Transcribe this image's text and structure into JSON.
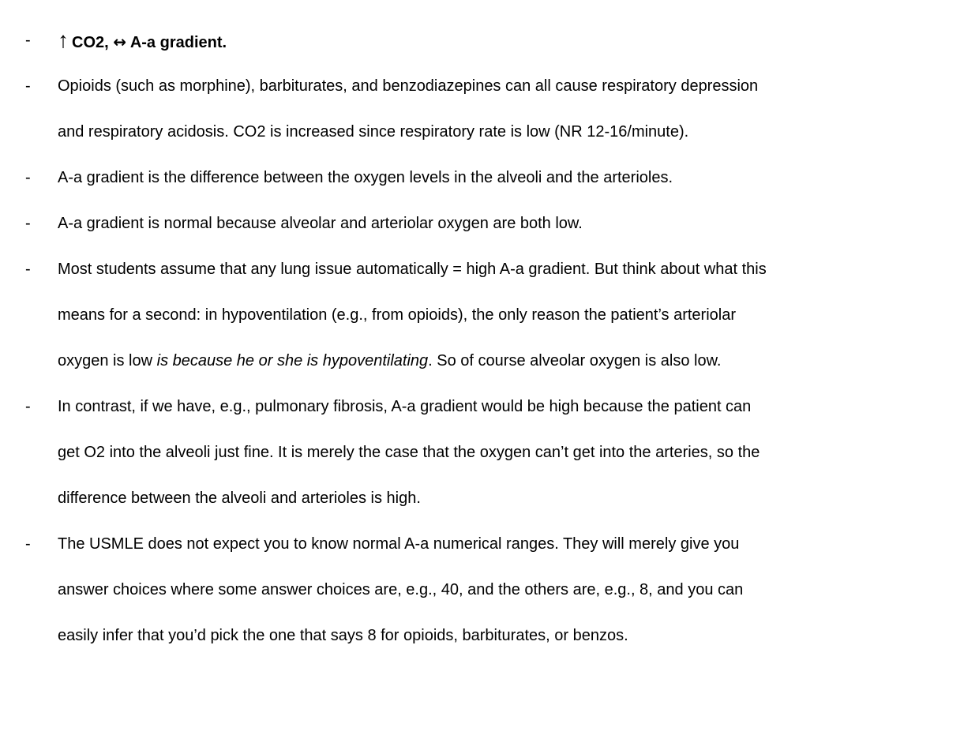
{
  "bullets": [
    {
      "heading": {
        "arrow_up": "↑",
        "part1": "CO2, ",
        "arrow_lr": "↔",
        "part2": " A-a gradient."
      }
    },
    {
      "lines": [
        "Opioids (such as morphine), barbiturates, and benzodiazepines can all cause respiratory depression",
        "and respiratory acidosis. CO2 is increased since respiratory rate is low (NR 12-16/minute)."
      ]
    },
    {
      "lines": [
        "A-a gradient is the difference between the oxygen levels in the alveoli and the arterioles."
      ]
    },
    {
      "lines": [
        "A-a gradient is normal because alveolar and arteriolar oxygen are both low."
      ]
    },
    {
      "lines": [
        "Most students assume that any lung issue automatically = high A-a gradient. But think about what this",
        "means for a second: in hypoventilation (e.g., from opioids), the only reason the patient’s arteriolar"
      ],
      "last_line": {
        "before": "oxygen is low ",
        "italic": "is because he or she is hypoventilating",
        "after": ". So of course alveolar oxygen is also low."
      }
    },
    {
      "lines": [
        "In contrast, if we have, e.g., pulmonary fibrosis, A-a gradient would be high because the patient can",
        "get O2 into the alveoli just fine. It is merely the case that the oxygen can’t get into the arteries, so the",
        "difference between the alveoli and arterioles is high."
      ]
    },
    {
      "lines": [
        "The USMLE does not expect you to know normal A-a numerical ranges. They will merely give you",
        "answer choices where some answer choices are, e.g., 40, and the others are, e.g., 8, and you can",
        "easily infer that you’d pick the one that says 8 for opioids, barbiturates, or benzos."
      ]
    }
  ],
  "dash_glyph": "-"
}
